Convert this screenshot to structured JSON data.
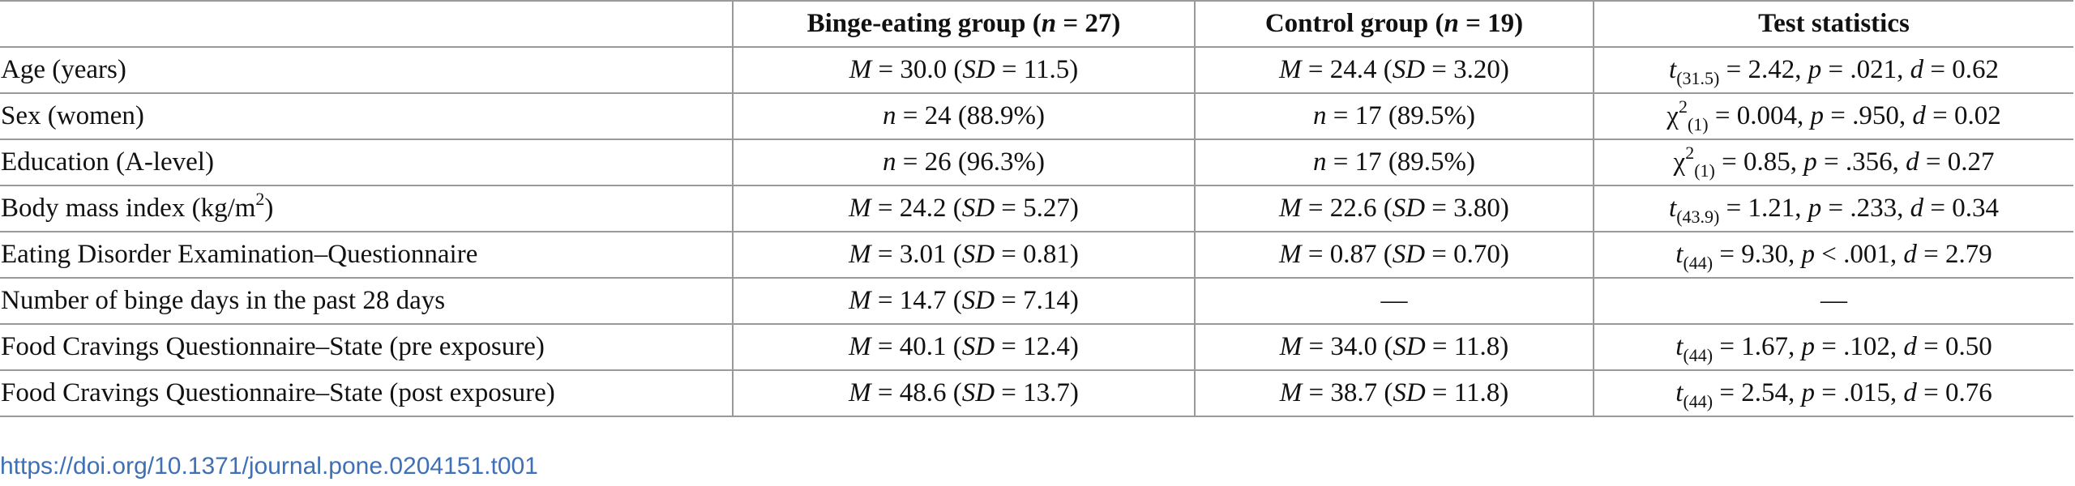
{
  "header": {
    "col1": "",
    "binge_prefix": "Binge-eating group (",
    "n_letter": "n",
    "binge_suffix": " = 27)",
    "control_prefix": "Control group (",
    "control_suffix": " = 19)",
    "test": "Test statistics"
  },
  "sym": {
    "M": "M",
    "SD": "SD",
    "n": "n",
    "t": "t",
    "p": "p",
    "d": "d",
    "chi": "χ",
    "two": "2"
  },
  "rows": {
    "age": {
      "label": "Age (years)",
      "binge_m": " = 30.0 (",
      "binge_sd": " = 11.5)",
      "control_m": " = 24.4 (",
      "control_sd": " = 3.20)",
      "t_sub": "(31.5)",
      "t_val": " = 2.42, ",
      "p_val": " = .021, ",
      "d_val": " = 0.62"
    },
    "sex": {
      "label": "Sex (women)",
      "binge": " = 24 (88.9%)",
      "control": " = 17 (89.5%)",
      "chi_sub": "(1)",
      "chi_val": " = 0.004, ",
      "p_val": " = .950, ",
      "d_val": " = 0.02"
    },
    "edu": {
      "label": "Education (A-level)",
      "binge": " = 26 (96.3%)",
      "control": " = 17 (89.5%)",
      "chi_sub": "(1)",
      "chi_val": " = 0.85, ",
      "p_val": " = .356, ",
      "d_val": " = 0.27"
    },
    "bmi": {
      "label": "Body mass index (kg/m",
      "label_sup": "2",
      "label_end": ")",
      "binge_m": " = 24.2 (",
      "binge_sd": " = 5.27)",
      "control_m": " = 22.6 (",
      "control_sd": " = 3.80)",
      "t_sub": "(43.9)",
      "t_val": " = 1.21, ",
      "p_val": " = .233, ",
      "d_val": " = 0.34"
    },
    "edeq": {
      "label": "Eating Disorder Examination–Questionnaire",
      "binge_m": " = 3.01 (",
      "binge_sd": " = 0.81)",
      "control_m": " = 0.87 (",
      "control_sd": " = 0.70)",
      "t_sub": "(44)",
      "t_val": " = 9.30, ",
      "p_val": " < .001, ",
      "d_val": " = 2.79"
    },
    "binge_days": {
      "label": "Number of binge days in the past 28 days",
      "binge_m": " = 14.7 (",
      "binge_sd": " = 7.14)",
      "control": "—",
      "test": "—"
    },
    "fcq_pre": {
      "label": "Food Cravings Questionnaire–State (pre exposure)",
      "binge_m": " = 40.1 (",
      "binge_sd": " = 12.4)",
      "control_m": " = 34.0 (",
      "control_sd": " = 11.8)",
      "t_sub": "(44)",
      "t_val": " = 1.67, ",
      "p_val": " = .102, ",
      "d_val": " = 0.50"
    },
    "fcq_post": {
      "label": "Food Cravings Questionnaire–State (post exposure)",
      "binge_m": " = 48.6 (",
      "binge_sd": " = 13.7)",
      "control_m": " = 38.7 (",
      "control_sd": " = 11.8)",
      "t_sub": "(44)",
      "t_val": " = 2.54, ",
      "p_val": " = .015, ",
      "d_val": " = 0.76"
    }
  },
  "doi": "https://doi.org/10.1371/journal.pone.0204151.t001",
  "colors": {
    "border": "#9a9a9a",
    "link": "#3f6fb5",
    "text": "#111111"
  }
}
